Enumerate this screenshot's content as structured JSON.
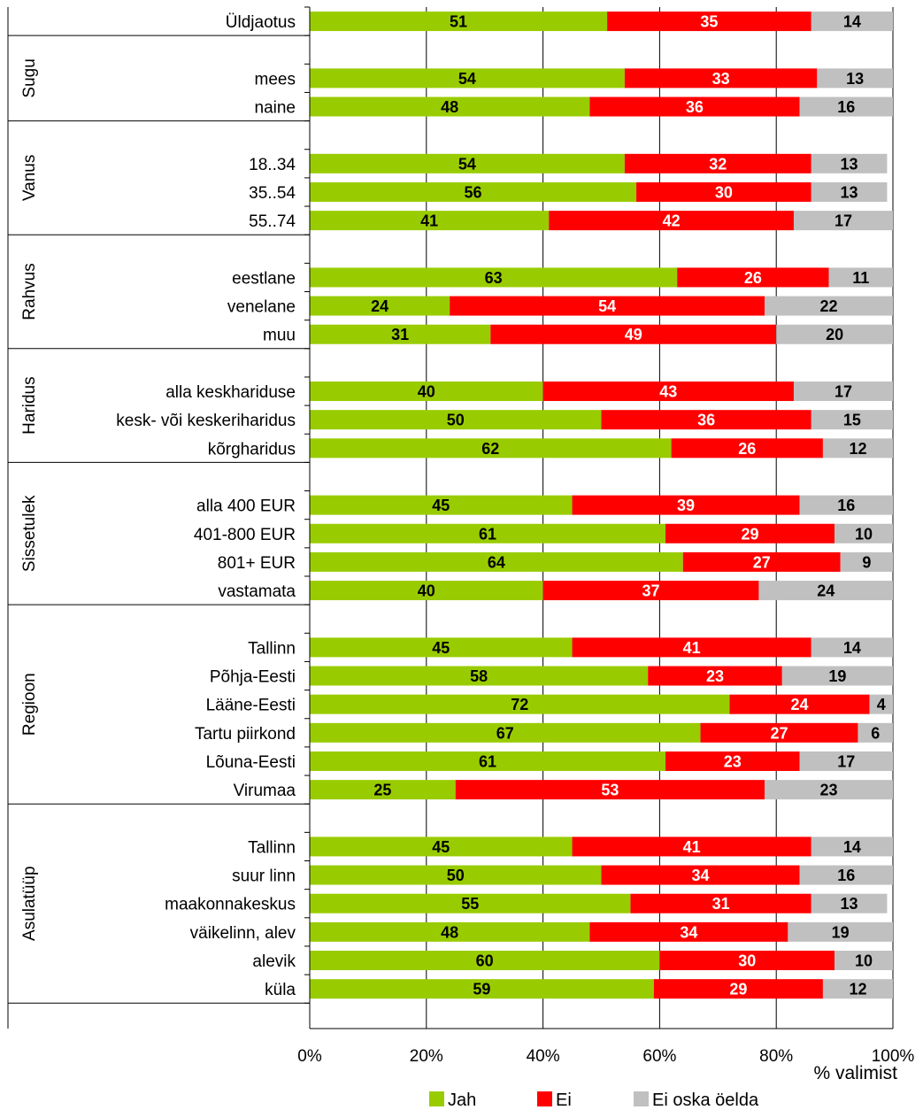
{
  "chart_data": {
    "type": "bar",
    "stacked": true,
    "orientation": "horizontal",
    "xlabel": "% valimist",
    "xlim": [
      0,
      100
    ],
    "x_ticks": [
      "0%",
      "20%",
      "40%",
      "60%",
      "80%",
      "100%"
    ],
    "grid": true,
    "legend_position": "bottom",
    "series": [
      {
        "name": "Jah",
        "color": "#99cc00"
      },
      {
        "name": "Ei",
        "color": "#ff0000"
      },
      {
        "name": "Ei oska öelda",
        "color": "#c0c0c0"
      }
    ],
    "groups": [
      {
        "name": "",
        "rows": [
          {
            "label": "Üldjaotus",
            "values": [
              51,
              35,
              14
            ]
          }
        ]
      },
      {
        "name": "Sugu",
        "rows": [
          {
            "label": "mees",
            "values": [
              54,
              33,
              13
            ]
          },
          {
            "label": "naine",
            "values": [
              48,
              36,
              16
            ]
          }
        ]
      },
      {
        "name": "Vanus",
        "rows": [
          {
            "label": "18..34",
            "values": [
              54,
              32,
              13
            ]
          },
          {
            "label": "35..54",
            "values": [
              56,
              30,
              13
            ]
          },
          {
            "label": "55..74",
            "values": [
              41,
              42,
              17
            ]
          }
        ]
      },
      {
        "name": "Rahvus",
        "rows": [
          {
            "label": "eestlane",
            "values": [
              63,
              26,
              11
            ]
          },
          {
            "label": "venelane",
            "values": [
              24,
              54,
              22
            ]
          },
          {
            "label": "muu",
            "values": [
              31,
              49,
              20
            ]
          }
        ]
      },
      {
        "name": "Haridus",
        "rows": [
          {
            "label": "alla keskhariduse",
            "values": [
              40,
              43,
              17
            ]
          },
          {
            "label": "kesk- või keskeriharidus",
            "values": [
              50,
              36,
              15
            ]
          },
          {
            "label": "kõrgharidus",
            "values": [
              62,
              26,
              12
            ]
          }
        ]
      },
      {
        "name": "Sissetulek",
        "rows": [
          {
            "label": "alla 400 EUR",
            "values": [
              45,
              39,
              16
            ]
          },
          {
            "label": "401-800 EUR",
            "values": [
              61,
              29,
              10
            ]
          },
          {
            "label": "801+ EUR",
            "values": [
              64,
              27,
              9
            ]
          },
          {
            "label": "vastamata",
            "values": [
              40,
              37,
              24
            ]
          }
        ]
      },
      {
        "name": "Regioon",
        "rows": [
          {
            "label": "Tallinn",
            "values": [
              45,
              41,
              14
            ]
          },
          {
            "label": "Põhja-Eesti",
            "values": [
              58,
              23,
              19
            ]
          },
          {
            "label": "Lääne-Eesti",
            "values": [
              72,
              24,
              4
            ]
          },
          {
            "label": "Tartu piirkond",
            "values": [
              67,
              27,
              6
            ]
          },
          {
            "label": "Lõuna-Eesti",
            "values": [
              61,
              23,
              17
            ]
          },
          {
            "label": "Virumaa",
            "values": [
              25,
              53,
              23
            ]
          }
        ]
      },
      {
        "name": "Asulatüüp",
        "rows": [
          {
            "label": "Tallinn",
            "values": [
              45,
              41,
              14
            ]
          },
          {
            "label": "suur linn",
            "values": [
              50,
              34,
              16
            ]
          },
          {
            "label": "maakonnakeskus",
            "values": [
              55,
              31,
              13
            ]
          },
          {
            "label": "väikelinn, alev",
            "values": [
              48,
              34,
              19
            ]
          },
          {
            "label": "alevik",
            "values": [
              60,
              30,
              10
            ]
          },
          {
            "label": "küla",
            "values": [
              59,
              29,
              12
            ]
          }
        ]
      }
    ],
    "value_label_colors": [
      "#000000",
      "#ffffff",
      "#000000"
    ]
  }
}
